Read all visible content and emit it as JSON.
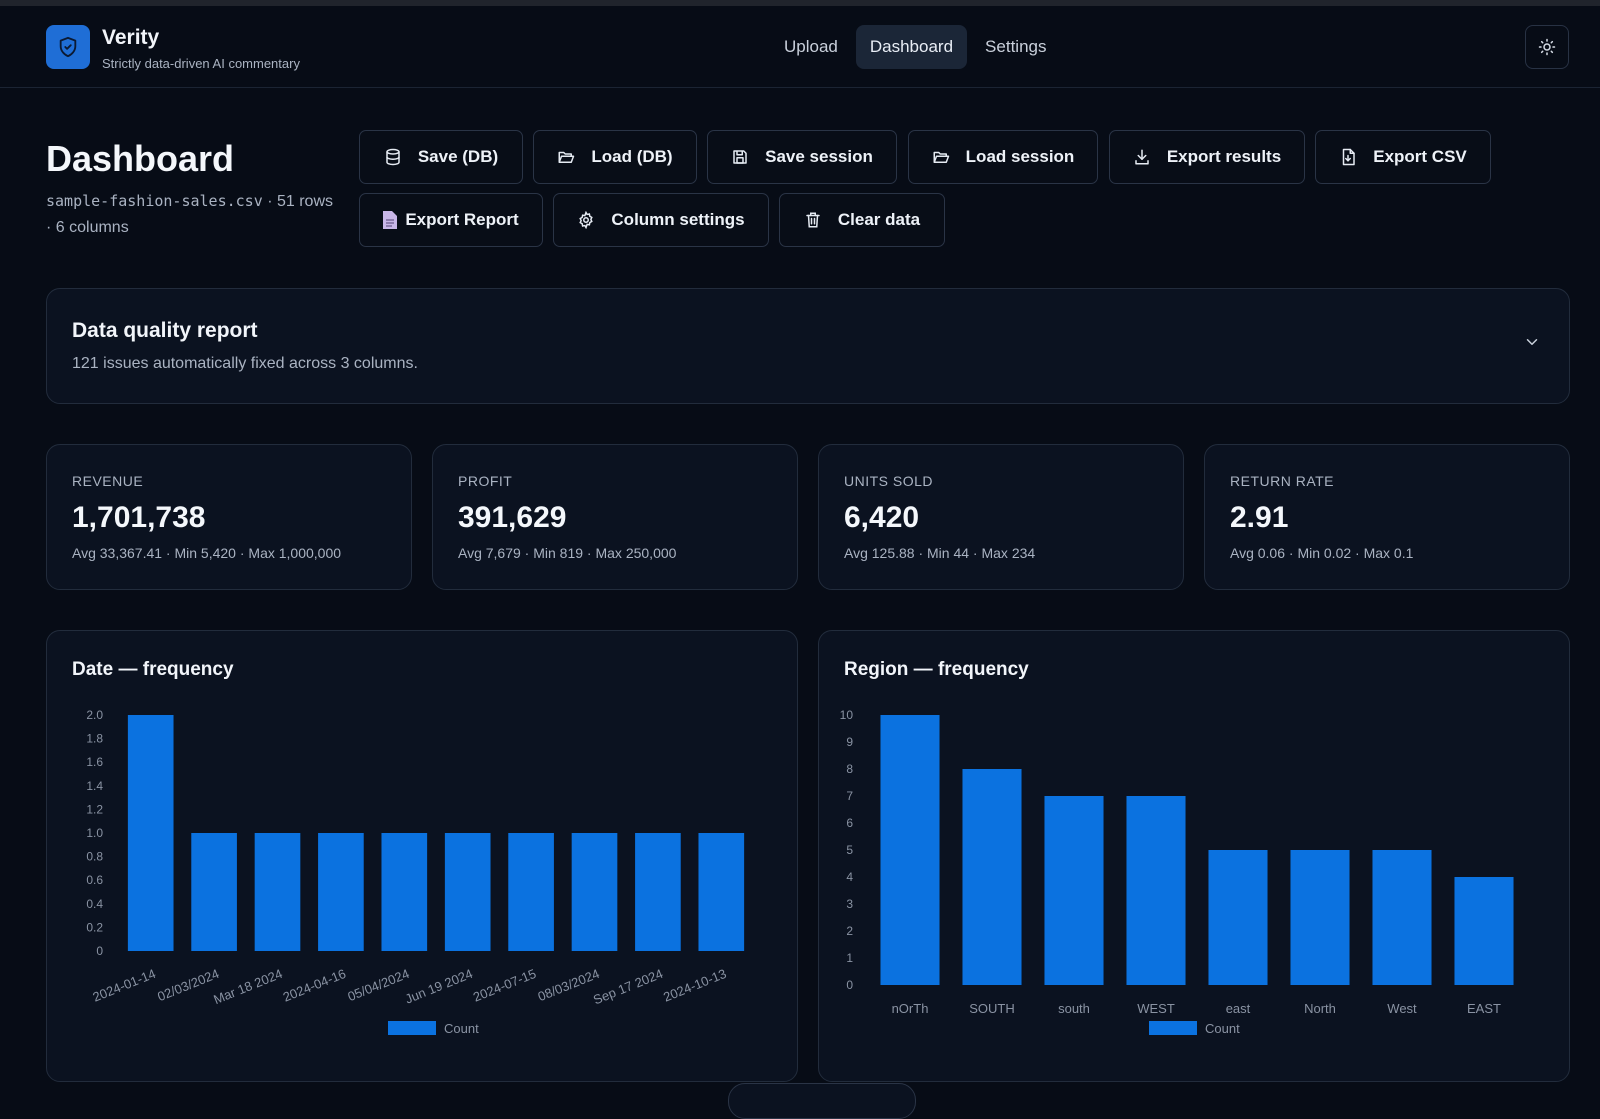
{
  "app": {
    "name": "Verity",
    "tagline": "Strictly data-driven AI commentary"
  },
  "nav": {
    "items": [
      "Upload",
      "Dashboard",
      "Settings"
    ],
    "active": "Dashboard"
  },
  "page": {
    "title": "Dashboard",
    "file_name": "sample-fashion-sales.csv",
    "file_meta_rest": " · 51 rows · 6 columns"
  },
  "toolbar": {
    "save_db": "Save (DB)",
    "load_db": "Load (DB)",
    "save_session": "Save session",
    "load_session": "Load session",
    "export_results": "Export results",
    "export_csv": "Export CSV",
    "export_report": "Export Report",
    "column_settings": "Column settings",
    "clear_data": "Clear data"
  },
  "data_quality": {
    "title": "Data quality report",
    "summary": "121 issues automatically fixed across 3 columns."
  },
  "kpis": [
    {
      "label": "REVENUE",
      "value": "1,701,738",
      "stats": "Avg 33,367.41 · Min 5,420 · Max 1,000,000"
    },
    {
      "label": "PROFIT",
      "value": "391,629",
      "stats": "Avg 7,679 · Min 819 · Max 250,000"
    },
    {
      "label": "UNITS SOLD",
      "value": "6,420",
      "stats": "Avg 125.88 · Min 44 · Max 234"
    },
    {
      "label": "RETURN RATE",
      "value": "2.91",
      "stats": "Avg 0.06 · Min 0.02 · Max 0.1"
    }
  ],
  "colors": {
    "bar": "#0b72e0",
    "accent": "#1f6ed6",
    "background": "#070c16",
    "card": "#0b1220"
  },
  "chart_data": [
    {
      "type": "bar",
      "title": "Date — frequency",
      "categories": [
        "2024-01-14",
        "02/03/2024",
        "Mar 18 2024",
        "2024-04-16",
        "05/04/2024",
        "Jun 19 2024",
        "2024-07-15",
        "08/03/2024",
        "Sep 17 2024",
        "2024-10-13"
      ],
      "series": [
        {
          "name": "Count",
          "values": [
            2,
            1,
            1,
            1,
            1,
            1,
            1,
            1,
            1,
            1
          ]
        }
      ],
      "ylim": [
        0,
        2
      ],
      "yticks": [
        "0",
        "0.2",
        "0.4",
        "0.6",
        "0.8",
        "1.0",
        "1.2",
        "1.4",
        "1.6",
        "1.8",
        "2.0"
      ],
      "legend": "bottom-center",
      "xlabel_rotation": "angled"
    },
    {
      "type": "bar",
      "title": "Region — frequency",
      "categories": [
        "nOrTh",
        "SOUTH",
        "south",
        "WEST",
        "east",
        "North",
        "West",
        "EAST"
      ],
      "series": [
        {
          "name": "Count",
          "values": [
            10,
            8,
            7,
            7,
            5,
            5,
            5,
            4
          ]
        }
      ],
      "ylim": [
        0,
        10
      ],
      "yticks": [
        "0",
        "1",
        "2",
        "3",
        "4",
        "5",
        "6",
        "7",
        "8",
        "9",
        "10"
      ],
      "legend": "bottom-center"
    }
  ]
}
